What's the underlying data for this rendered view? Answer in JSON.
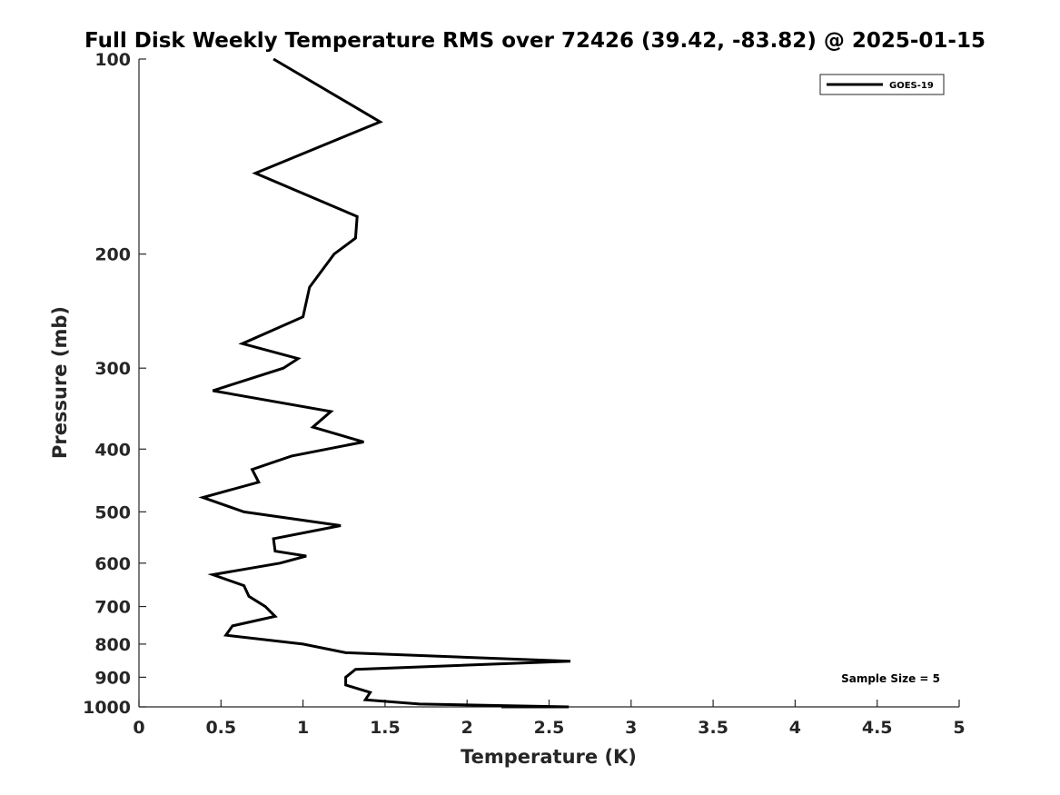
{
  "chart_data": {
    "type": "line",
    "title": "Full Disk Weekly Temperature RMS over 72426 (39.42, -83.82) @ 2025-01-15",
    "xlabel": "Temperature (K)",
    "ylabel": "Pressure (mb)",
    "xlim": [
      0,
      5
    ],
    "ylim": [
      100,
      1000
    ],
    "y_scale": "log",
    "y_reversed": true,
    "x_ticks": [
      "0",
      "0.5",
      "1",
      "1.5",
      "2",
      "2.5",
      "3",
      "3.5",
      "4",
      "4.5",
      "5"
    ],
    "y_ticks": [
      "100",
      "200",
      "300",
      "400",
      "500",
      "600",
      "700",
      "800",
      "900",
      "1000"
    ],
    "grid": false,
    "legend": {
      "position": "top-right",
      "entries": [
        "GOES-19"
      ]
    },
    "annotations": [
      {
        "text": "Sample Size = 5",
        "position": "bottom-right"
      }
    ],
    "series": [
      {
        "name": "GOES-19",
        "color": "#000000",
        "x": [
          0.82,
          1.47,
          0.71,
          1.33,
          1.32,
          1.19,
          1.04,
          1.0,
          0.63,
          0.97,
          0.88,
          0.45,
          1.17,
          1.06,
          1.37,
          0.93,
          0.69,
          0.73,
          0.39,
          0.64,
          1.23,
          0.82,
          0.83,
          1.02,
          0.86,
          0.45,
          0.64,
          0.67,
          0.77,
          0.83,
          0.57,
          0.53,
          1.0,
          1.26,
          2.63,
          1.32,
          1.26,
          1.26,
          1.41,
          1.38,
          1.71,
          2.62,
          2.21
        ],
        "y": [
          100,
          125,
          150,
          175,
          189,
          200,
          225,
          250,
          275,
          290,
          300,
          325,
          350,
          370,
          390,
          410,
          430,
          450,
          475,
          500,
          525,
          550,
          575,
          585,
          600,
          625,
          650,
          675,
          700,
          725,
          750,
          775,
          800,
          825,
          850,
          875,
          900,
          925,
          950,
          975,
          990,
          1000,
          1000
        ]
      }
    ]
  }
}
